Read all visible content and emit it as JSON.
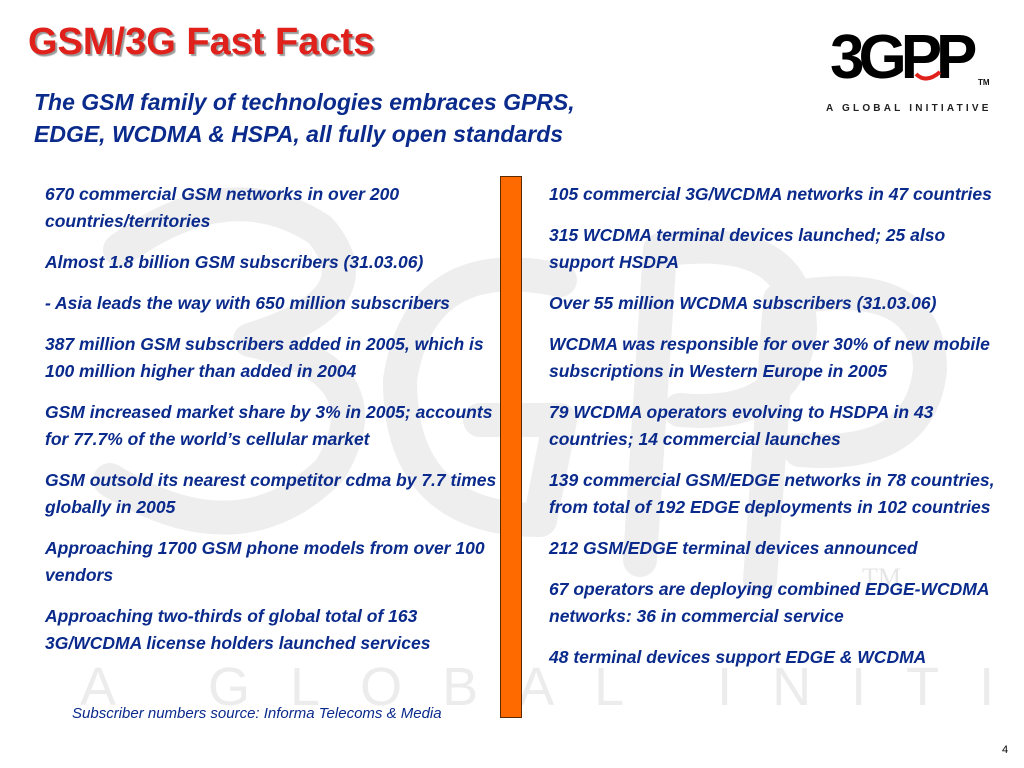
{
  "slide": {
    "title": "GSM/3G Fast Facts",
    "subtitle_lines": [
      "The GSM family of technologies embraces GPRS,",
      "EDGE, WCDMA & HSPA, all fully open standards"
    ],
    "page_number": "4"
  },
  "logo": {
    "mark_text": "3GPP",
    "tm": "TM",
    "tagline": "A GLOBAL INITIATIVE"
  },
  "watermark": {
    "text": "A GLOBAL INITIATIVE",
    "tm": "TM"
  },
  "left_column": {
    "items": [
      "670 commercial GSM networks in over 200 countries/territories",
      "Almost 1.8 billion GSM subscribers (31.03.06)",
      "- Asia leads the way with 650 million subscribers",
      "387 million GSM subscribers added in 2005, which is 100 million higher than added in 2004",
      "GSM increased market share by 3% in 2005; accounts for 77.7% of the world’s cellular market",
      "GSM outsold its nearest competitor cdma by 7.7 times globally in 2005",
      "Approaching 1700 GSM phone models from over 100 vendors",
      "Approaching two-thirds of global total of 163 3G/WCDMA license holders launched services"
    ]
  },
  "right_column": {
    "items": [
      "105 commercial 3G/WCDMA networks in 47 countries",
      "315 WCDMA terminal devices launched; 25 also support HSDPA",
      "Over 55 million WCDMA subscribers (31.03.06)",
      "WCDMA was responsible for over 30% of new mobile subscriptions in Western Europe in 2005",
      "79 WCDMA operators evolving to HSDPA in 43 countries; 14 commercial launches",
      "139 commercial GSM/EDGE networks in 78 countries, from total of 192 EDGE deployments in 102 countries",
      "212 GSM/EDGE terminal devices announced",
      "67 operators are deploying combined EDGE-WCDMA networks: 36 in commercial service",
      "48 terminal devices support EDGE & WCDMA"
    ]
  },
  "footer": {
    "source": "Subscriber numbers source: Informa Telecoms & Media"
  },
  "colors": {
    "title": "#e0201a",
    "body_text": "#0a2a8c",
    "divider": "#ff6a00",
    "watermark": "#ececec"
  }
}
